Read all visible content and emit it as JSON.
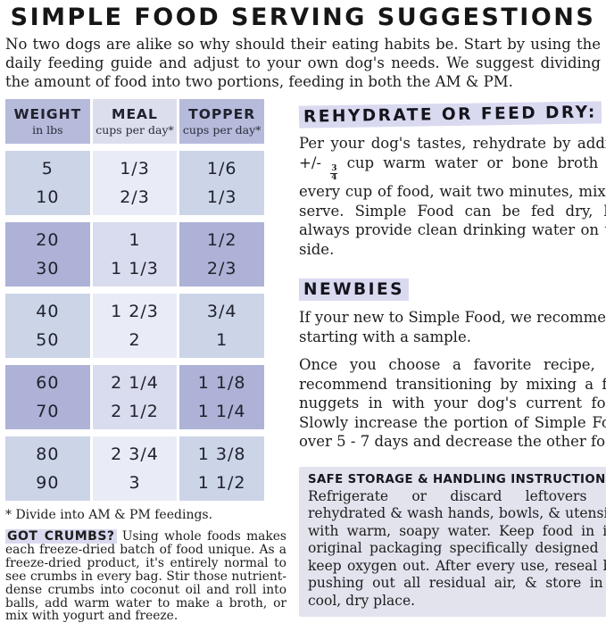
{
  "title": "SIMPLE FOOD SERVING SUGGESTIONS",
  "intro": "No two dogs are alike so why should their eating habits be. Start by using the daily feeding guide and adjust to your own dog's needs. We suggest dividing the amount of food into two portions, feeding in both the AM & PM.",
  "table": {
    "columns": [
      {
        "label": "WEIGHT",
        "sublabel": "in lbs"
      },
      {
        "label": "MEAL",
        "sublabel": "cups per day*"
      },
      {
        "label": "TOPPER",
        "sublabel": "cups per day*"
      }
    ],
    "groups": [
      {
        "shade": "light",
        "rows": [
          {
            "weight": "5",
            "meal": "1/3",
            "topper": "1/6"
          },
          {
            "weight": "10",
            "meal": "2/3",
            "topper": "1/3"
          }
        ]
      },
      {
        "shade": "dark",
        "rows": [
          {
            "weight": "20",
            "meal": "1",
            "topper": "1/2"
          },
          {
            "weight": "30",
            "meal": "1 1/3",
            "topper": "2/3"
          }
        ]
      },
      {
        "shade": "light",
        "rows": [
          {
            "weight": "40",
            "meal": "1 2/3",
            "topper": "3/4"
          },
          {
            "weight": "50",
            "meal": "2",
            "topper": "1"
          }
        ]
      },
      {
        "shade": "dark",
        "rows": [
          {
            "weight": "60",
            "meal": "2 1/4",
            "topper": "1 1/8"
          },
          {
            "weight": "70",
            "meal": "2 1/2",
            "topper": "1 1/4"
          }
        ]
      },
      {
        "shade": "light",
        "rows": [
          {
            "weight": "80",
            "meal": "2 3/4",
            "topper": "1 3/8"
          },
          {
            "weight": "90",
            "meal": "3",
            "topper": "1 1/2"
          }
        ]
      }
    ],
    "footnote": "* Divide into AM & PM feedings."
  },
  "sections": {
    "rehydrate": {
      "heading": "REHYDRATE OR FEED DRY:",
      "body_before": "Per your dog's tastes, rehydrate by adding +/-",
      "fraction": {
        "numerator": "3",
        "denominator": "4"
      },
      "body_after": "cup warm water or bone broth for every cup of food, wait two minutes, mix, & serve. Simple Food can be fed dry, but always provide clean drinking water on the side."
    },
    "newbies": {
      "heading": "NEWBIES",
      "body1": "If your new to Simple Food, we recommend starting with a sample.",
      "body2": "Once you choose a favorite recipe, we recommend transitioning by mixing a few nuggets in with your dog's current food. Slowly increase the portion of Simple Food over 5 - 7 days and decrease the other food."
    },
    "safe_storage": {
      "heading": "SAFE STORAGE & HANDLING INSTRUCTIONS:",
      "body": "Refrigerate or discard leftovers if rehydrated & wash hands, bowls, & utensils with warm, soapy water. Keep food in its original packaging specifically designed to keep oxygen out. After every use, reseal by pushing out all residual air, & store in a cool, dry place."
    },
    "crumbs": {
      "heading": "GOT CRUMBS?",
      "body": "Using whole foods makes each freeze-dried batch of food unique. As a freeze-dried product, it's entirely normal to see crumbs in every bag. Stir those nutrient-dense crumbs into coconut oil and roll into balls, add warm water to make a broth, or mix with yogurt and freeze."
    }
  },
  "colors": {
    "text": "#1d1d1d",
    "header_side_cell": "#b6bbdb",
    "header_meal_cell": "#dcdeee",
    "dark_band_side": "#adb2d6",
    "dark_band_meal": "#d9dcee",
    "light_band_side": "#ccd4e8",
    "light_band_meal": "#e9ecf6",
    "heading_highlight": "#d9daf0",
    "storage_box_bg": "#e3e3ee"
  }
}
